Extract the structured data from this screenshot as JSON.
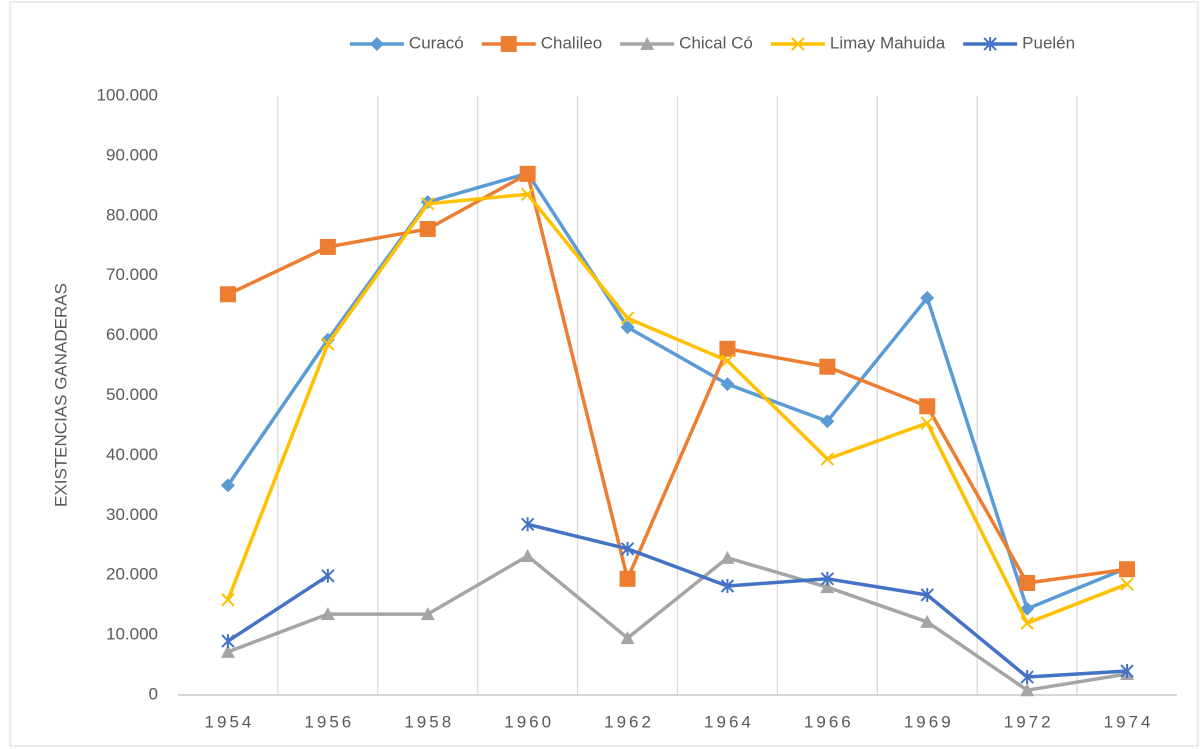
{
  "chart_data": {
    "type": "line",
    "y_label": "EXISTENCIAS GANADERAS",
    "categories": [
      "1954",
      "1956",
      "1958",
      "1960",
      "1962",
      "1964",
      "1966",
      "1969",
      "1972",
      "1974"
    ],
    "series": [
      {
        "name": "Curacó",
        "color": "#5b9bd5",
        "marker": "diamond",
        "values": [
          35000,
          59300,
          82300,
          87100,
          61400,
          51900,
          45700,
          66300,
          14400,
          21200
        ]
      },
      {
        "name": "Chalileo",
        "color": "#ed7d31",
        "marker": "square",
        "values": [
          66900,
          74800,
          77800,
          87000,
          19400,
          57800,
          54800,
          48200,
          18700,
          21000
        ]
      },
      {
        "name": "Chical Có",
        "color": "#a5a5a5",
        "marker": "triangle",
        "values": [
          7200,
          13500,
          13500,
          23200,
          9500,
          22900,
          18000,
          12200,
          800,
          3500
        ]
      },
      {
        "name": "Limay Mahuida",
        "color": "#ffc000",
        "marker": "x",
        "values": [
          15900,
          58600,
          82000,
          83600,
          62900,
          55800,
          39400,
          45400,
          12000,
          18500
        ]
      },
      {
        "name": "Puelén",
        "color": "#4472c4",
        "marker": "star",
        "values": [
          9000,
          19900,
          null,
          28500,
          24400,
          18200,
          19400,
          16700,
          3000,
          4000
        ]
      }
    ],
    "ylim": [
      0,
      100000
    ],
    "yticks": [
      0,
      {
        "value": 10000,
        "label": "10.000"
      },
      {
        "value": 20000,
        "label": "20.000"
      },
      {
        "value": 30000,
        "label": "30.000"
      },
      {
        "value": 40000,
        "label": "40.000"
      },
      {
        "value": 50000,
        "label": "50.000"
      },
      {
        "value": 60000,
        "label": "60.000"
      },
      {
        "value": 70000,
        "label": "70.000"
      },
      {
        "value": 80000,
        "label": "80.000"
      },
      {
        "value": 90000,
        "label": "90.000"
      },
      {
        "value": 100000,
        "label": "100.000"
      }
    ],
    "grid": "x",
    "legend": "top"
  }
}
